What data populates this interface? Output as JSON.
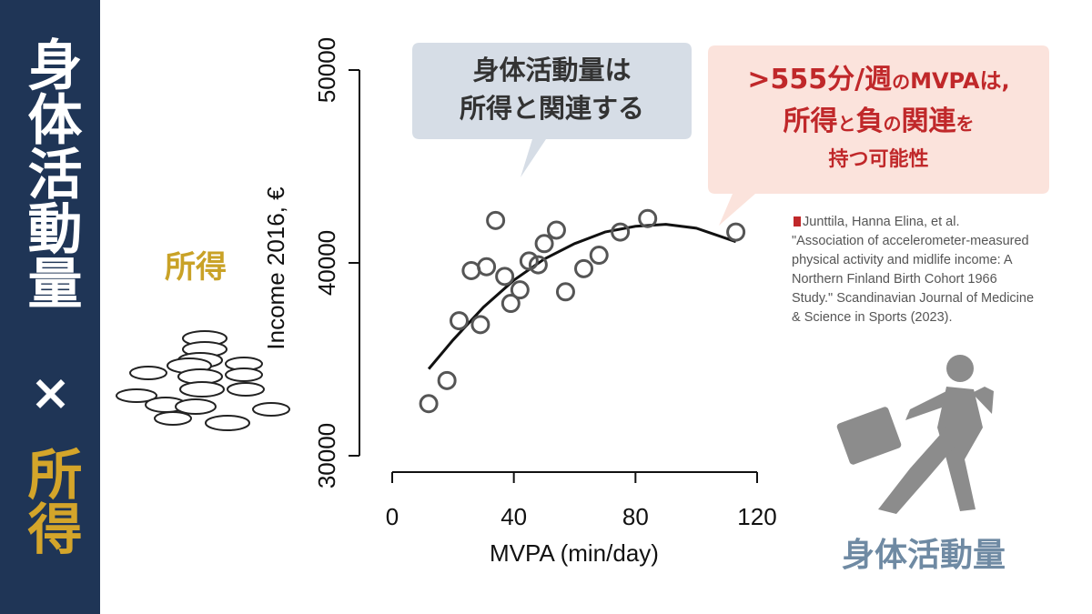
{
  "sidebar": {
    "top": "身体活動量",
    "times": "×",
    "bottom": "所得"
  },
  "income_label": "所得",
  "activity_label": "身体活動量",
  "bubble_left": {
    "lines": [
      "身体活動量は",
      "所得と関連する"
    ]
  },
  "bubble_right": {
    "line1": [
      ">555分/週",
      "の",
      "MVPAは,"
    ],
    "line2": [
      "所得",
      "と",
      "負",
      "の",
      "関連",
      "を"
    ],
    "line3": "持つ可能性"
  },
  "citation": {
    "lines": [
      "Junttila, Hanna Elina, et al.",
      "\"Association of accelerometer-measured",
      "physical activity and midlife income: A",
      "Northern Finland Birth Cohort 1966",
      "Study.\" Scandinavian Journal of Medicine",
      "& Science in Sports (2023)."
    ]
  },
  "chart_data": {
    "type": "scatter",
    "x_label": "MVPA (min/day)",
    "y_label": "Income 2016, €",
    "x": [
      12,
      18,
      22,
      26,
      29,
      31,
      34,
      37,
      39,
      42,
      45,
      48,
      50,
      54,
      57,
      63,
      68,
      75,
      84,
      113
    ],
    "values": [
      32700,
      33900,
      37000,
      39600,
      36800,
      39800,
      42200,
      39300,
      37900,
      38600,
      40100,
      39900,
      41000,
      41700,
      38500,
      39700,
      40400,
      41600,
      42300,
      41600
    ],
    "color": "#555555",
    "fit": {
      "x": [
        12,
        20,
        30,
        40,
        50,
        60,
        70,
        80,
        90,
        100,
        113
      ],
      "values": [
        34500,
        36000,
        37700,
        39100,
        40200,
        41000,
        41600,
        41900,
        42000,
        41800,
        41100
      ],
      "color": "#111111"
    },
    "xlim": [
      0,
      120
    ],
    "ylim": [
      30000,
      50000
    ],
    "xticks": [
      0,
      40,
      80,
      120
    ],
    "yticks": [
      30000,
      40000,
      50000
    ]
  }
}
